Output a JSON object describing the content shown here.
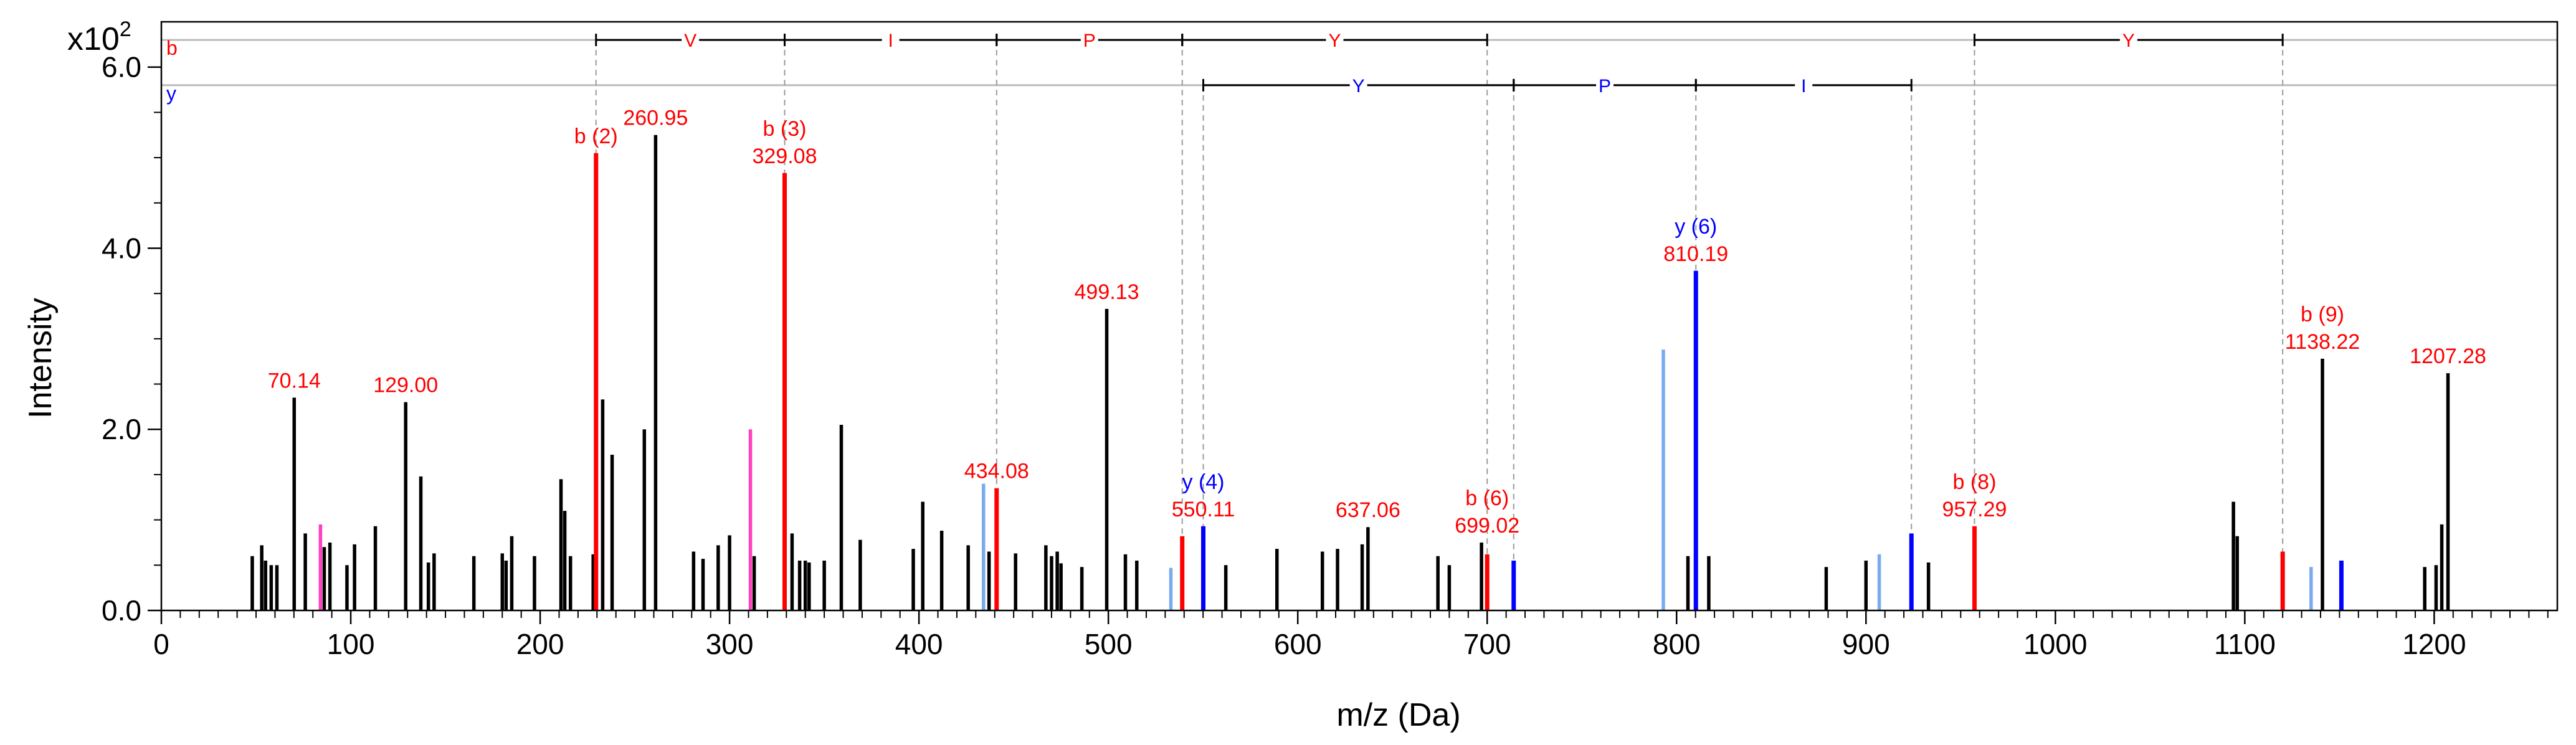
{
  "chart_data": {
    "type": "bar",
    "title": "",
    "xlabel": "m/z (Da)",
    "ylabel": "Intensity",
    "y_scale_label": "x10",
    "y_scale_exponent": "2",
    "xlim": [
      0,
      1265
    ],
    "ylim": [
      0,
      6.5
    ],
    "x_ticks": [
      0,
      100,
      200,
      300,
      400,
      500,
      600,
      700,
      800,
      900,
      1000,
      1100,
      1200
    ],
    "y_ticks": [
      0.0,
      2.0,
      4.0,
      6.0
    ],
    "y_tick_labels": [
      "0.0",
      "2.0",
      "4.0",
      "6.0"
    ],
    "colors": {
      "other": "#000000",
      "b": "#ff0000",
      "y": "#0000ff",
      "y_other": "#7aaaf0",
      "pink": "#ff40c0",
      "ion_line": "#bbbbbb",
      "ladder": "#000000",
      "guide": "#9a9a9a"
    },
    "series": [
      {
        "name": "other",
        "peaks": [
          [
            48,
            0.6
          ],
          [
            53,
            0.72
          ],
          [
            55,
            0.55
          ],
          [
            58,
            0.5
          ],
          [
            61,
            0.5
          ],
          [
            70.14,
            2.35
          ],
          [
            76,
            0.85
          ],
          [
            86,
            0.7
          ],
          [
            89,
            0.75
          ],
          [
            98,
            0.5
          ],
          [
            102,
            0.73
          ],
          [
            113,
            0.93
          ],
          [
            129.0,
            2.3
          ],
          [
            137,
            1.48
          ],
          [
            141,
            0.53
          ],
          [
            144,
            0.63
          ],
          [
            165,
            0.6
          ],
          [
            180,
            0.63
          ],
          [
            182,
            0.55
          ],
          [
            185,
            0.82
          ],
          [
            197,
            0.6
          ],
          [
            211,
            1.45
          ],
          [
            213,
            1.1
          ],
          [
            216,
            0.6
          ],
          [
            228,
            0.62
          ],
          [
            233,
            2.33
          ],
          [
            238,
            1.72
          ],
          [
            255,
            2.0
          ],
          [
            260.95,
            5.25
          ],
          [
            281,
            0.65
          ],
          [
            286,
            0.57
          ],
          [
            294,
            0.72
          ],
          [
            300,
            0.83
          ],
          [
            313,
            0.6
          ],
          [
            333,
            0.85
          ],
          [
            337,
            0.55
          ],
          [
            340,
            0.55
          ],
          [
            342,
            0.53
          ],
          [
            350,
            0.55
          ],
          [
            359,
            2.05
          ],
          [
            369,
            0.78
          ],
          [
            397,
            0.68
          ],
          [
            402,
            1.2
          ],
          [
            412,
            0.88
          ],
          [
            426,
            0.72
          ],
          [
            437,
            0.65
          ],
          [
            451,
            0.63
          ],
          [
            467,
            0.72
          ],
          [
            470,
            0.6
          ],
          [
            473,
            0.65
          ],
          [
            475,
            0.52
          ],
          [
            486,
            0.48
          ],
          [
            499.13,
            3.33
          ],
          [
            509,
            0.62
          ],
          [
            515,
            0.55
          ],
          [
            562,
            0.5
          ],
          [
            589,
            0.68
          ],
          [
            613,
            0.65
          ],
          [
            621,
            0.68
          ],
          [
            634,
            0.73
          ],
          [
            637.06,
            0.92
          ],
          [
            674,
            0.6
          ],
          [
            680,
            0.5
          ],
          [
            697,
            0.75
          ],
          [
            806,
            0.6
          ],
          [
            817,
            0.6
          ],
          [
            879,
            0.48
          ],
          [
            900,
            0.55
          ],
          [
            933,
            0.53
          ],
          [
            1094,
            1.2
          ],
          [
            1096,
            0.82
          ],
          [
            1141,
            2.78
          ],
          [
            1195,
            0.48
          ],
          [
            1201,
            0.5
          ],
          [
            1204,
            0.95
          ],
          [
            1207.28,
            2.62
          ]
        ]
      },
      {
        "name": "b",
        "peaks": [
          [
            229.5,
            5.05
          ],
          [
            329.08,
            4.83
          ],
          [
            441,
            1.35
          ],
          [
            539,
            0.82
          ],
          [
            700,
            0.62
          ],
          [
            957.29,
            0.93
          ],
          [
            1120,
            0.65
          ]
        ]
      },
      {
        "name": "y",
        "peaks": [
          [
            550.11,
            0.93
          ],
          [
            714,
            0.55
          ],
          [
            810.19,
            3.75
          ],
          [
            924,
            0.85
          ],
          [
            1151,
            0.55
          ]
        ]
      },
      {
        "name": "y_other",
        "peaks": [
          [
            434.08,
            1.4
          ],
          [
            533,
            0.47
          ],
          [
            793,
            2.88
          ],
          [
            907,
            0.62
          ],
          [
            1135,
            0.48
          ]
        ]
      },
      {
        "name": "pink",
        "peaks": [
          [
            84,
            0.95
          ],
          [
            311,
            2.0
          ]
        ]
      }
    ],
    "peak_labels": [
      {
        "x": 70.14,
        "y": 2.35,
        "color": "b",
        "text": "70.14"
      },
      {
        "x": 129.0,
        "y": 2.3,
        "color": "b",
        "text": "129.00"
      },
      {
        "x": 229.5,
        "y": 5.05,
        "color": "b",
        "text": "b (2)"
      },
      {
        "x": 260.95,
        "y": 5.25,
        "color": "b",
        "text": "260.95"
      },
      {
        "x": 329.08,
        "y": 4.83,
        "color": "b",
        "ion": "b (3)",
        "text": "329.08"
      },
      {
        "x": 441,
        "y": 1.35,
        "color": "b",
        "text": "434.08"
      },
      {
        "x": 499.13,
        "y": 3.33,
        "color": "b",
        "text": "499.13"
      },
      {
        "x": 550.11,
        "y": 0.93,
        "color": "b",
        "ion": "y (4)",
        "ion_color": "y",
        "text": "550.11"
      },
      {
        "x": 637.06,
        "y": 0.92,
        "color": "b",
        "text": "637.06"
      },
      {
        "x": 700,
        "y": 0.75,
        "color": "b",
        "ion": "b (6)",
        "text": "699.02"
      },
      {
        "x": 810.19,
        "y": 3.75,
        "color": "b",
        "ion": "y (6)",
        "ion_color": "y",
        "text": "810.19"
      },
      {
        "x": 957.29,
        "y": 0.93,
        "color": "b",
        "ion": "b (8)",
        "text": "957.29"
      },
      {
        "x": 1141,
        "y": 2.78,
        "color": "b",
        "ion": "b (9)",
        "text": "1138.22"
      },
      {
        "x": 1207.28,
        "y": 2.62,
        "color": "b",
        "text": "1207.28"
      }
    ],
    "ion_series": [
      {
        "name": "b",
        "label": "b",
        "color": "b",
        "level": 6.3,
        "ticks": [
          229.5,
          329.08,
          441,
          539,
          700,
          957.29,
          1120
        ],
        "guides": [
          [
            229.5,
            5.05
          ],
          [
            329.08,
            4.83
          ],
          [
            441,
            1.35
          ],
          [
            539,
            0.82
          ],
          [
            700,
            0.62
          ],
          [
            957.29,
            0.93
          ],
          [
            1120,
            0.65
          ]
        ],
        "residues": [
          {
            "from": 229.5,
            "to": 329.08,
            "letter": "V"
          },
          {
            "from": 329.08,
            "to": 441,
            "letter": "I"
          },
          {
            "from": 441,
            "to": 539,
            "letter": "P"
          },
          {
            "from": 539,
            "to": 700,
            "letter": "Y"
          },
          {
            "from": 957.29,
            "to": 1120,
            "letter": "Y"
          }
        ]
      },
      {
        "name": "y",
        "label": "y",
        "color": "y",
        "level": 5.8,
        "ticks": [
          550.11,
          714,
          810.19,
          924
        ],
        "guides": [
          [
            550.11,
            0.93
          ],
          [
            714,
            0.55
          ],
          [
            810.19,
            3.75
          ],
          [
            924,
            0.85
          ]
        ],
        "residues": [
          {
            "from": 550.11,
            "to": 714,
            "letter": "Y"
          },
          {
            "from": 714,
            "to": 810.19,
            "letter": "P"
          },
          {
            "from": 810.19,
            "to": 924,
            "letter": "I"
          }
        ]
      }
    ]
  }
}
